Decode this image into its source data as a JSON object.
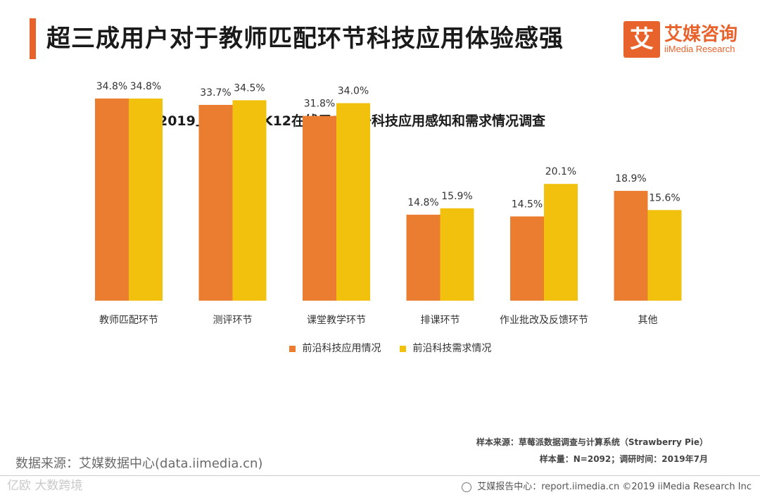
{
  "header": {
    "title": "超三成用户对于教师匹配环节科技应用体验感强",
    "logo_mark": "艾",
    "logo_cn": "艾媒咨询",
    "logo_en": "iiMedia Research"
  },
  "chart_data": {
    "type": "bar",
    "title": "2019上半年中国K12在线用户对于科技应用感知和需求情况调查",
    "categories": [
      "教师匹配环节",
      "测评环节",
      "课堂教学环节",
      "排课环节",
      "作业批改及反馈环节",
      "其他"
    ],
    "series": [
      {
        "name": "前沿科技应用情况",
        "color": "#ea7d30",
        "values": [
          34.8,
          33.7,
          31.8,
          14.8,
          14.5,
          18.9
        ],
        "labels": [
          "34.8%",
          "33.7%",
          "31.8%",
          "14.8%",
          "14.5%",
          "18.9%"
        ]
      },
      {
        "name": "前沿科技需求情况",
        "color": "#f2c10e",
        "values": [
          34.8,
          34.5,
          34.0,
          15.9,
          20.1,
          15.6
        ],
        "labels": [
          "34.8%",
          "34.5%",
          "34.0%",
          "15.9%",
          "20.1%",
          "15.6%"
        ]
      }
    ],
    "ylim": [
      0,
      40
    ],
    "grid": false,
    "legend_position": "bottom"
  },
  "source": {
    "line1": "样本来源：草莓派数据调查与计算系统（Strawberry  Pie）",
    "line2": "样本量：N=2092；调研时间：2019年7月",
    "data_source": "数据来源：艾媒数据中心(data.iimedia.cn)"
  },
  "footer": {
    "report": "艾媒报告中心：report.iimedia.cn  ©2019  iiMedia Research  Inc",
    "watermark": "亿欧 大数跨境"
  }
}
